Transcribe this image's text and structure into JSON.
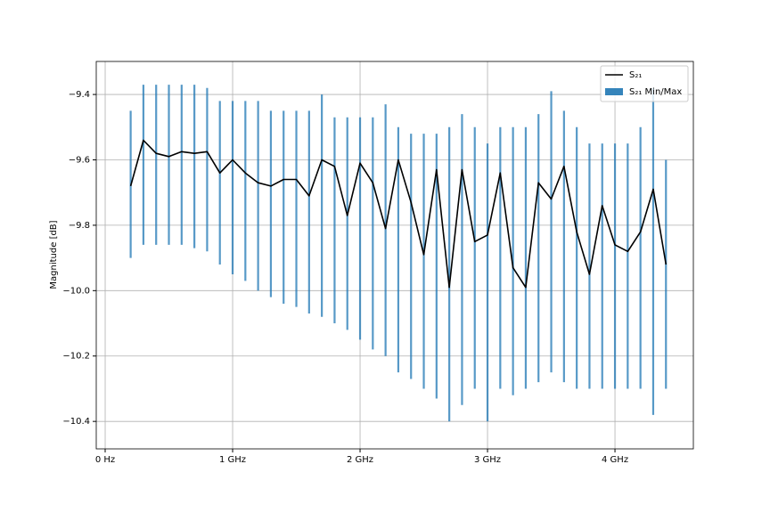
{
  "chart_data": {
    "type": "line",
    "ylabel": "Magnitude [dB]",
    "x": [
      200000000,
      300000000,
      400000000,
      500000000,
      600000000,
      700000000,
      800000000,
      900000000,
      1000000000,
      1100000000,
      1200000000,
      1300000000,
      1400000000,
      1500000000,
      1600000000,
      1700000000,
      1800000000,
      1900000000,
      2000000000,
      2100000000,
      2200000000,
      2300000000,
      2400000000,
      2500000000,
      2600000000,
      2700000000,
      2800000000,
      2900000000,
      3000000000,
      3100000000,
      3200000000,
      3300000000,
      3400000000,
      3500000000,
      3600000000,
      3700000000,
      3800000000,
      3900000000,
      4000000000,
      4100000000,
      4200000000,
      4300000000,
      4400000000
    ],
    "series": [
      {
        "name": "S₂₁",
        "color": "#000000",
        "values": [
          -9.68,
          -9.54,
          -9.58,
          -9.59,
          -9.575,
          -9.58,
          -9.575,
          -9.64,
          -9.6,
          -9.64,
          -9.67,
          -9.68,
          -9.66,
          -9.66,
          -9.71,
          -9.6,
          -9.62,
          -9.77,
          -9.61,
          -9.67,
          -9.81,
          -9.6,
          -9.73,
          -9.89,
          -9.63,
          -9.99,
          -9.63,
          -9.85,
          -9.83,
          -9.64,
          -9.93,
          -9.99,
          -9.67,
          -9.72,
          -9.62,
          -9.82,
          -9.95,
          -9.74,
          -9.86,
          -9.88,
          -9.82,
          -9.69,
          -9.92
        ]
      },
      {
        "name": "S₂₁ Min/Max",
        "color": "#1f77b4",
        "min": [
          -9.9,
          -9.86,
          -9.86,
          -9.86,
          -9.86,
          -9.87,
          -9.88,
          -9.92,
          -9.95,
          -9.97,
          -10.0,
          -10.02,
          -10.04,
          -10.05,
          -10.07,
          -10.08,
          -10.1,
          -10.12,
          -10.15,
          -10.18,
          -10.2,
          -10.25,
          -10.27,
          -10.3,
          -10.33,
          -10.4,
          -10.35,
          -10.3,
          -10.4,
          -10.3,
          -10.32,
          -10.3,
          -10.28,
          -10.25,
          -10.28,
          -10.3,
          -10.3,
          -10.3,
          -10.3,
          -10.3,
          -10.3,
          -10.38,
          -10.3
        ],
        "max": [
          -9.45,
          -9.37,
          -9.37,
          -9.37,
          -9.37,
          -9.37,
          -9.38,
          -9.42,
          -9.42,
          -9.42,
          -9.42,
          -9.45,
          -9.45,
          -9.45,
          -9.45,
          -9.4,
          -9.47,
          -9.47,
          -9.47,
          -9.47,
          -9.43,
          -9.5,
          -9.52,
          -9.52,
          -9.52,
          -9.5,
          -9.46,
          -9.5,
          -9.55,
          -9.5,
          -9.5,
          -9.5,
          -9.46,
          -9.39,
          -9.45,
          -9.5,
          -9.55,
          -9.55,
          -9.55,
          -9.55,
          -9.5,
          -9.38,
          -9.6
        ]
      }
    ],
    "xlim": [
      -70000000,
      4615000000
    ],
    "xticks": [
      {
        "value": 0,
        "label": "0 Hz"
      },
      {
        "value": 1000000000,
        "label": "1 GHz"
      },
      {
        "value": 2000000000,
        "label": "2 GHz"
      },
      {
        "value": 3000000000,
        "label": "3 GHz"
      },
      {
        "value": 4000000000,
        "label": "4 GHz"
      }
    ],
    "ylim": [
      -10.484,
      -9.299
    ],
    "yticks": [
      {
        "value": -9.4,
        "label": "−9.4"
      },
      {
        "value": -9.6,
        "label": "−9.6"
      },
      {
        "value": -9.8,
        "label": "−9.8"
      },
      {
        "value": -10.0,
        "label": "−10.0"
      },
      {
        "value": -10.2,
        "label": "−10.2"
      },
      {
        "value": -10.4,
        "label": "−10.4"
      }
    ],
    "grid": true,
    "legend": "upper right"
  }
}
